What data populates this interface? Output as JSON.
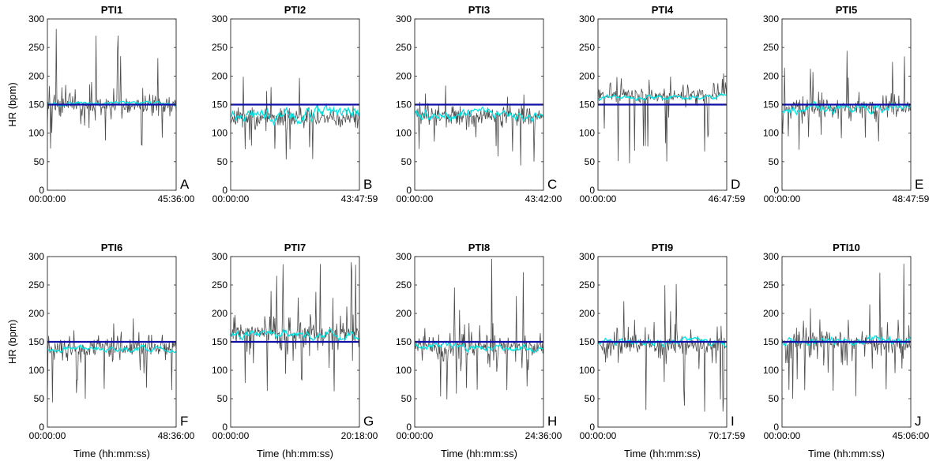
{
  "figure": {
    "ylabel": "HR (bpm)",
    "xlabel": "Time (hh:mm:ss)"
  },
  "colors": {
    "raw_hr": "#4d4d4d",
    "smoothed_hr": "#00e5e5",
    "reference_line": "#1010a8",
    "axes": "#262626"
  },
  "chart_data": [
    {
      "type": "line",
      "title": "PTI1",
      "panel_letter": "A",
      "x_start_label": "00:00:00",
      "x_end_label": "45:36:00",
      "yticks": [
        "0",
        "50",
        "100",
        "150",
        "200",
        "250",
        "300"
      ],
      "ylim": [
        0,
        300
      ],
      "reference_line": 150,
      "raw_hr": {
        "center": 148,
        "min": 65,
        "max": 300
      },
      "smoothed_hr": {
        "mean": 152,
        "min": 145,
        "max": 160
      }
    },
    {
      "type": "line",
      "title": "PTI2",
      "panel_letter": "B",
      "x_start_label": "00:00:00",
      "x_end_label": "43:47:59",
      "yticks": [
        "0",
        "50",
        "100",
        "150",
        "200",
        "250",
        "300"
      ],
      "ylim": [
        0,
        300
      ],
      "reference_line": 150,
      "raw_hr": {
        "center": 128,
        "min": 45,
        "max": 200
      },
      "smoothed_hr": {
        "mean": 132,
        "min": 105,
        "max": 160
      }
    },
    {
      "type": "line",
      "title": "PTI3",
      "panel_letter": "C",
      "x_start_label": "00:00:00",
      "x_end_label": "43:42:00",
      "yticks": [
        "0",
        "50",
        "100",
        "150",
        "200",
        "250",
        "300"
      ],
      "ylim": [
        0,
        300
      ],
      "reference_line": 150,
      "raw_hr": {
        "center": 130,
        "min": 40,
        "max": 200
      },
      "smoothed_hr": {
        "mean": 132,
        "min": 115,
        "max": 155
      }
    },
    {
      "type": "line",
      "title": "PTI4",
      "panel_letter": "D",
      "x_start_label": "00:00:00",
      "x_end_label": "46:47:59",
      "yticks": [
        "0",
        "50",
        "100",
        "150",
        "200",
        "250",
        "300"
      ],
      "ylim": [
        0,
        300
      ],
      "reference_line": 150,
      "raw_hr": {
        "center": 165,
        "min": 38,
        "max": 205
      },
      "smoothed_hr": {
        "mean": 163,
        "min": 155,
        "max": 175
      }
    },
    {
      "type": "line",
      "title": "PTI5",
      "panel_letter": "E",
      "x_start_label": "00:00:00",
      "x_end_label": "48:47:59",
      "yticks": [
        "0",
        "50",
        "100",
        "150",
        "200",
        "250",
        "300"
      ],
      "ylim": [
        0,
        300
      ],
      "reference_line": 150,
      "raw_hr": {
        "center": 145,
        "min": 60,
        "max": 255
      },
      "smoothed_hr": {
        "mean": 143,
        "min": 125,
        "max": 165
      }
    },
    {
      "type": "line",
      "title": "PTI6",
      "panel_letter": "F",
      "x_start_label": "00:00:00",
      "x_end_label": "48:36:00",
      "yticks": [
        "0",
        "50",
        "100",
        "150",
        "200",
        "250",
        "300"
      ],
      "ylim": [
        0,
        300
      ],
      "reference_line": 150,
      "raw_hr": {
        "center": 138,
        "min": 40,
        "max": 195
      },
      "smoothed_hr": {
        "mean": 138,
        "min": 125,
        "max": 150
      }
    },
    {
      "type": "line",
      "title": "PTI7",
      "panel_letter": "G",
      "x_start_label": "00:00:00",
      "x_end_label": "20:18:00",
      "yticks": [
        "0",
        "50",
        "100",
        "150",
        "200",
        "250",
        "300"
      ],
      "ylim": [
        0,
        300
      ],
      "reference_line": 150,
      "raw_hr": {
        "center": 165,
        "min": 45,
        "max": 300
      },
      "smoothed_hr": {
        "mean": 163,
        "min": 150,
        "max": 185
      }
    },
    {
      "type": "line",
      "title": "PTI8",
      "panel_letter": "H",
      "x_start_label": "00:00:00",
      "x_end_label": "24:36:00",
      "yticks": [
        "0",
        "50",
        "100",
        "150",
        "200",
        "250",
        "300"
      ],
      "ylim": [
        0,
        300
      ],
      "reference_line": 150,
      "raw_hr": {
        "center": 140,
        "min": 40,
        "max": 300
      },
      "smoothed_hr": {
        "mean": 140,
        "min": 125,
        "max": 155
      }
    },
    {
      "type": "line",
      "title": "PTI9",
      "panel_letter": "I",
      "x_start_label": "00:00:00",
      "x_end_label": "70:17:59",
      "yticks": [
        "0",
        "50",
        "100",
        "150",
        "200",
        "250",
        "300"
      ],
      "ylim": [
        0,
        300
      ],
      "reference_line": 150,
      "raw_hr": {
        "center": 145,
        "min": 15,
        "max": 300
      },
      "smoothed_hr": {
        "mean": 150,
        "min": 140,
        "max": 170
      }
    },
    {
      "type": "line",
      "title": "PTI10",
      "panel_letter": "J",
      "x_start_label": "00:00:00",
      "x_end_label": "45:06:00",
      "yticks": [
        "0",
        "50",
        "100",
        "150",
        "200",
        "250",
        "300"
      ],
      "ylim": [
        0,
        300
      ],
      "reference_line": 150,
      "raw_hr": {
        "center": 150,
        "min": 45,
        "max": 300
      },
      "smoothed_hr": {
        "mean": 152,
        "min": 135,
        "max": 170
      }
    }
  ]
}
